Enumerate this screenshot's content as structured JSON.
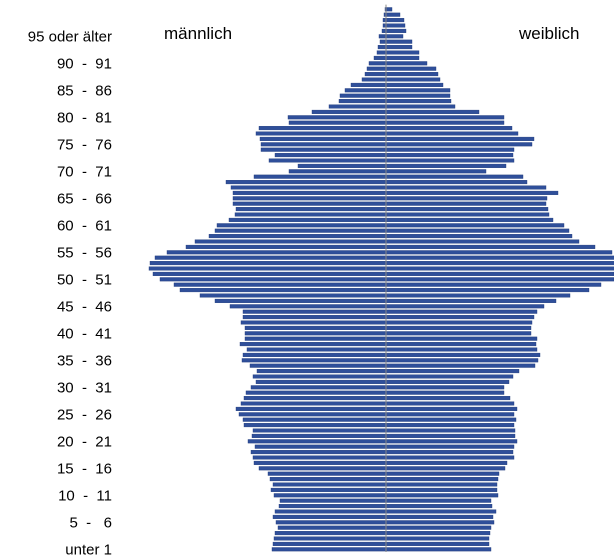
{
  "chart_data": {
    "type": "bar",
    "orientation": "horizontal-diverging",
    "left_label": "männlich",
    "right_label": "weiblich",
    "age_labels": [
      {
        "age": 0,
        "text": "unter 1"
      },
      {
        "age": 5,
        "text": "5  -   6"
      },
      {
        "age": 10,
        "text": "10  -  11"
      },
      {
        "age": 15,
        "text": "15  -  16"
      },
      {
        "age": 20,
        "text": "20  -  21"
      },
      {
        "age": 25,
        "text": "25  -  26"
      },
      {
        "age": 30,
        "text": "30  -  31"
      },
      {
        "age": 35,
        "text": "35  -  36"
      },
      {
        "age": 40,
        "text": "40  -  41"
      },
      {
        "age": 45,
        "text": "45  -  46"
      },
      {
        "age": 50,
        "text": "50  -  51"
      },
      {
        "age": 55,
        "text": "55  -  56"
      },
      {
        "age": 60,
        "text": "60  -  61"
      },
      {
        "age": 65,
        "text": "65  -  66"
      },
      {
        "age": 70,
        "text": "70  -  71"
      },
      {
        "age": 75,
        "text": "75  -  76"
      },
      {
        "age": 80,
        "text": "80  -  81"
      },
      {
        "age": 85,
        "text": "85  -  86"
      },
      {
        "age": 90,
        "text": "90  -  91"
      },
      {
        "age": 95,
        "text": "95 oder älter"
      }
    ],
    "series": [
      {
        "name": "männlich",
        "color": "#2f4f9a",
        "values": [
          114,
          113,
          112,
          111,
          108,
          110,
          113,
          111,
          107,
          106,
          112,
          115,
          113,
          116,
          118,
          127,
          132,
          133,
          135,
          131,
          138,
          134,
          133,
          142,
          143,
          147,
          150,
          145,
          142,
          140,
          135,
          130,
          133,
          129,
          136,
          144,
          143,
          139,
          146,
          141,
          141,
          141,
          145,
          143,
          143,
          156,
          171,
          186,
          206,
          212,
          226,
          233,
          237,
          236,
          231,
          219,
          200,
          191,
          177,
          171,
          169,
          157,
          151,
          150,
          153,
          153,
          153,
          155,
          160,
          132,
          97,
          88,
          117,
          111,
          125,
          125,
          126,
          130,
          127,
          97,
          98,
          74,
          57,
          47,
          46,
          41,
          35,
          24,
          21,
          19,
          17,
          12,
          9,
          8,
          6,
          7,
          4,
          3,
          3,
          2,
          1
        ]
      },
      {
        "name": "weiblich",
        "color": "#2f4f9a",
        "values": [
          105,
          103,
          103,
          104,
          105,
          108,
          107,
          110,
          106,
          105,
          112,
          111,
          111,
          112,
          113,
          119,
          121,
          128,
          127,
          128,
          131,
          129,
          129,
          128,
          130,
          128,
          131,
          128,
          124,
          118,
          118,
          123,
          127,
          133,
          149,
          152,
          154,
          151,
          150,
          151,
          145,
          145,
          146,
          148,
          151,
          158,
          170,
          184,
          203,
          215,
          228,
          228,
          233,
          233,
          233,
          226,
          209,
          193,
          186,
          183,
          178,
          167,
          163,
          162,
          160,
          161,
          172,
          160,
          141,
          137,
          100,
          120,
          128,
          127,
          128,
          146,
          148,
          132,
          126,
          118,
          118,
          93,
          69,
          65,
          64,
          64,
          57,
          54,
          52,
          50,
          41,
          33,
          33,
          26,
          26,
          17,
          20,
          19,
          18,
          14,
          6
        ]
      }
    ]
  }
}
